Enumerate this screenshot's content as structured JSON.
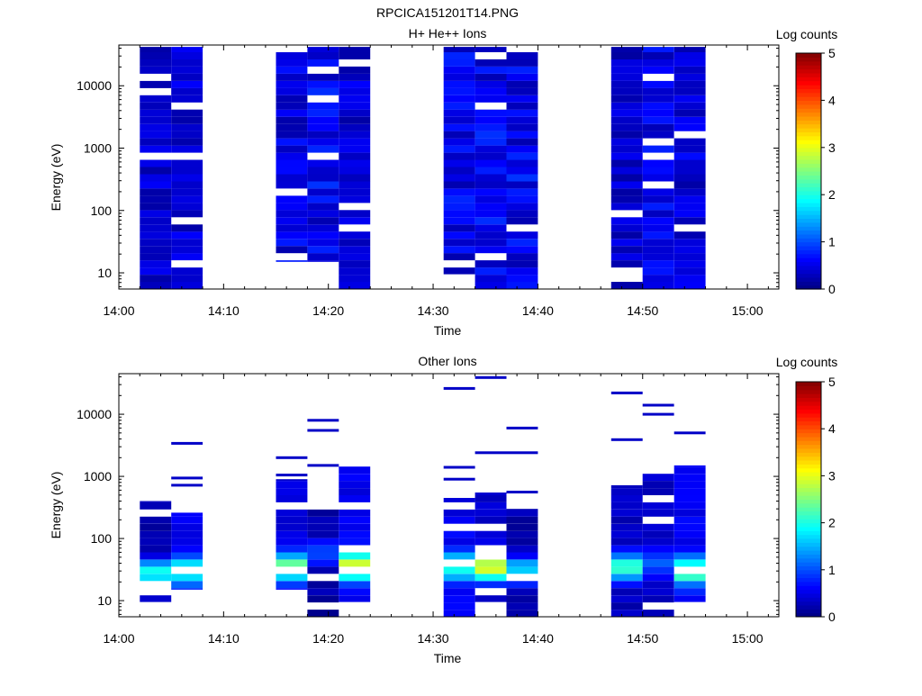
{
  "figure": {
    "title": "RPCICA151201T14.PNG"
  },
  "panels": [
    {
      "title": "H+ He++ Ions",
      "xlabel": "Time",
      "ylabel": "Energy (eV)",
      "colorbar_label": "Log counts"
    },
    {
      "title": "Other Ions",
      "xlabel": "Time",
      "ylabel": "Energy (eV)",
      "colorbar_label": "Log counts"
    }
  ],
  "chart_data": [
    {
      "type": "heatmap",
      "title": "H+ He++ Ions",
      "xlabel": "Time",
      "ylabel": "Energy (eV)",
      "xlim": [
        "14:00",
        "15:03"
      ],
      "xticks": [
        "14:00",
        "14:10",
        "14:20",
        "14:30",
        "14:40",
        "14:50",
        "15:00"
      ],
      "ylim": [
        5.5,
        45000
      ],
      "yscale": "log",
      "yticks": [
        "10",
        "100",
        "1000",
        "10000"
      ],
      "colorbar": {
        "label": "Log counts",
        "range": [
          0,
          5
        ],
        "ticks": [
          "0",
          "1",
          "2",
          "3",
          "4",
          "5"
        ],
        "colormap": "jet"
      },
      "columns": [
        {
          "start": "14:02",
          "end": "14:05",
          "emin": 5.5,
          "emax": 42000,
          "base": 0.5
        },
        {
          "start": "14:05",
          "end": "14:08",
          "emin": 5.5,
          "emax": 42000,
          "base": 0.5
        },
        {
          "start": "14:15",
          "end": "14:18",
          "emin": 15,
          "emax": 42000,
          "base": 0.6
        },
        {
          "start": "14:18",
          "end": "14:21",
          "emin": 15,
          "emax": 42000,
          "base": 0.7
        },
        {
          "start": "14:21",
          "end": "14:24",
          "emin": 5.5,
          "emax": 42000,
          "base": 0.5
        },
        {
          "start": "14:31",
          "end": "14:34",
          "emin": 9.5,
          "emax": 42000,
          "base": 0.65
        },
        {
          "start": "14:34",
          "end": "14:37",
          "emin": 5.5,
          "emax": 42000,
          "base": 0.7
        },
        {
          "start": "14:37",
          "end": "14:40",
          "emin": 5.5,
          "emax": 42000,
          "base": 0.7
        },
        {
          "start": "14:47",
          "end": "14:50",
          "emin": 5.5,
          "emax": 42000,
          "base": 0.45
        },
        {
          "start": "14:50",
          "end": "14:53",
          "emin": 5.5,
          "emax": 42000,
          "base": 0.65
        },
        {
          "start": "14:53",
          "end": "14:56",
          "emin": 5.5,
          "emax": 42000,
          "base": 0.55
        }
      ]
    },
    {
      "type": "heatmap",
      "title": "Other Ions",
      "xlabel": "Time",
      "ylabel": "Energy (eV)",
      "xlim": [
        "14:00",
        "15:03"
      ],
      "xticks": [
        "14:00",
        "14:10",
        "14:20",
        "14:30",
        "14:40",
        "14:50",
        "15:00"
      ],
      "ylim": [
        5.5,
        45000
      ],
      "yscale": "log",
      "yticks": [
        "10",
        "100",
        "1000",
        "10000"
      ],
      "colorbar": {
        "label": "Log counts",
        "range": [
          0,
          5
        ],
        "ticks": [
          "0",
          "1",
          "2",
          "3",
          "4",
          "5"
        ],
        "colormap": "jet"
      },
      "columns": [
        {
          "start": "14:02",
          "end": "14:05",
          "emin": 9.5,
          "emax": 400,
          "peak_energy": 28,
          "peak": 1.9,
          "base": 0.35,
          "extra": []
        },
        {
          "start": "14:05",
          "end": "14:08",
          "emin": 15,
          "emax": 260,
          "peak_energy": 30,
          "peak": 2.1,
          "base": 0.9,
          "extra": [
            720,
            940,
            3400
          ]
        },
        {
          "start": "14:15",
          "end": "14:18",
          "emin": 15,
          "emax": 900,
          "peak_energy": 35,
          "peak": 2.5,
          "base": 0.7,
          "extra": [
            1050,
            2000
          ]
        },
        {
          "start": "14:18",
          "end": "14:21",
          "emin": 5.5,
          "emax": 360,
          "peak_energy": 60,
          "peak": 1.0,
          "base": 0.3,
          "extra": [
            1500,
            5500,
            8000
          ]
        },
        {
          "start": "14:21",
          "end": "14:24",
          "emin": 9.5,
          "emax": 1800,
          "peak_energy": 35,
          "peak": 3.0,
          "base": 0.9,
          "extra": []
        },
        {
          "start": "14:31",
          "end": "14:34",
          "emin": 5.5,
          "emax": 450,
          "peak_energy": 35,
          "peak": 2.1,
          "base": 0.9,
          "extra": [
            900,
            1400,
            26000
          ]
        },
        {
          "start": "14:34",
          "end": "14:37",
          "emin": 9.5,
          "emax": 550,
          "peak_energy": 35,
          "peak": 3.0,
          "base": 0.7,
          "extra": [
            2400,
            39000
          ]
        },
        {
          "start": "14:37",
          "end": "14:40",
          "emin": 5.5,
          "emax": 300,
          "peak_energy": 30,
          "peak": 1.7,
          "base": 0.35,
          "extra": [
            560,
            2400,
            6000
          ]
        },
        {
          "start": "14:47",
          "end": "14:50",
          "emin": 5.5,
          "emax": 720,
          "peak_energy": 35,
          "peak": 2.1,
          "base": 0.5,
          "extra": [
            3900,
            22000
          ]
        },
        {
          "start": "14:50",
          "end": "14:53",
          "emin": 5.5,
          "emax": 1100,
          "peak_energy": 40,
          "peak": 1.0,
          "base": 0.6,
          "extra": [
            10000,
            14000
          ]
        },
        {
          "start": "14:53",
          "end": "14:56",
          "emin": 9.5,
          "emax": 1500,
          "peak_energy": 30,
          "peak": 2.4,
          "base": 0.9,
          "extra": [
            5000
          ]
        }
      ]
    }
  ]
}
